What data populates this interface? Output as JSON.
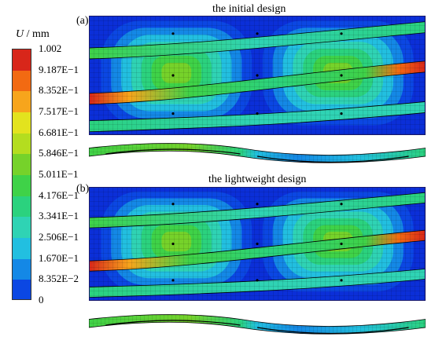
{
  "legend": {
    "title_symbol": "U",
    "title_unit": "/ mm",
    "labels": [
      "1.002",
      "9.187E−1",
      "8.352E−1",
      "7.517E−1",
      "6.681E−1",
      "5.846E−1",
      "5.011E−1",
      "4.176E−1",
      "3.341E−1",
      "2.506E−1",
      "1.670E−1",
      "8.352E−2",
      "0"
    ],
    "colors": [
      "#d8261a",
      "#f26a12",
      "#f7a51c",
      "#e3e31e",
      "#b4dd1f",
      "#76d22a",
      "#3fd248",
      "#2bd27e",
      "#2fd3b4",
      "#22bfe0",
      "#1488e6",
      "#0b47e3"
    ]
  },
  "panels": [
    {
      "letter": "(a)",
      "title": "the initial design"
    },
    {
      "letter": "(b)",
      "title": "the lightweight design"
    }
  ]
}
